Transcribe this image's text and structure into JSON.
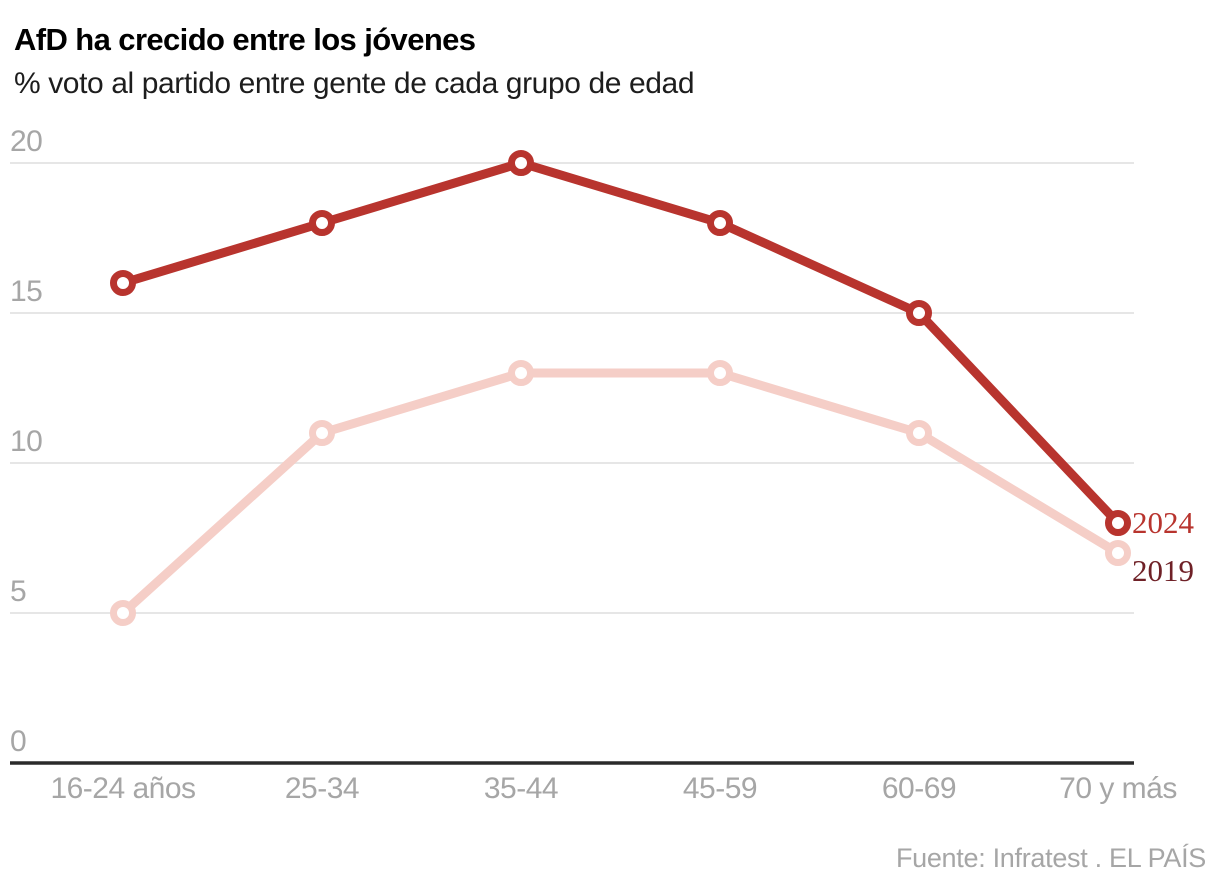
{
  "header": {
    "title": "AfD ha crecido entre los jóvenes",
    "subtitle": "% voto al partido entre gente de cada grupo de edad"
  },
  "source": "Fuente: Infratest . EL PAÍS",
  "colors": {
    "series_2024": "#b8342e",
    "series_2019": "#f5cec7",
    "label_2024": "#b8342e",
    "label_2019": "#6f2127",
    "grid": "#e6e6e6",
    "axis": "#2b2b2b",
    "tick_text": "#a6a6a6"
  },
  "chart_data": {
    "type": "line",
    "title": "AfD ha crecido entre los jóvenes",
    "subtitle": "% voto al partido entre gente de cada grupo de edad",
    "categories": [
      "16-24 años",
      "25-34",
      "35-44",
      "45-59",
      "60-69",
      "70 y más"
    ],
    "series": [
      {
        "name": "2024",
        "values": [
          16,
          18,
          20,
          18,
          15,
          8
        ]
      },
      {
        "name": "2019",
        "values": [
          5,
          11,
          13,
          13,
          11,
          7
        ]
      }
    ],
    "xlabel": "",
    "ylabel": "",
    "ylim": [
      0,
      20
    ],
    "yticks": [
      0,
      5,
      10,
      15,
      20
    ],
    "grid": true,
    "legend_position": "end-of-line-labels-right"
  }
}
